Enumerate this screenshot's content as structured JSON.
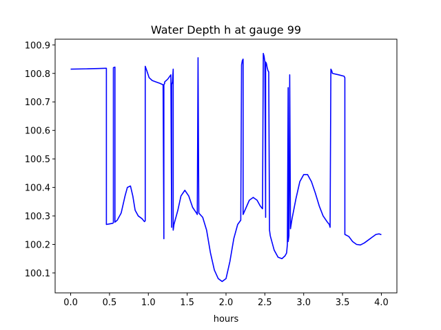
{
  "chart_data": {
    "type": "line",
    "title": "Water Depth h at gauge 99",
    "xlabel": "hours",
    "ylabel": "",
    "xlim": [
      -0.2,
      4.2
    ],
    "ylim": [
      100.03,
      100.92
    ],
    "xticks": [
      0.0,
      0.5,
      1.0,
      1.5,
      2.0,
      2.5,
      3.0,
      3.5,
      4.0
    ],
    "xtick_labels": [
      "0.0",
      "0.5",
      "1.0",
      "1.5",
      "2.0",
      "2.5",
      "3.0",
      "3.5",
      "4.0"
    ],
    "yticks": [
      100.1,
      100.2,
      100.3,
      100.4,
      100.5,
      100.6,
      100.7,
      100.8,
      100.9
    ],
    "ytick_labels": [
      "100.1",
      "100.2",
      "100.3",
      "100.4",
      "100.5",
      "100.6",
      "100.7",
      "100.8",
      "100.9"
    ],
    "grid": false,
    "series": [
      {
        "name": "h",
        "color": "#0000ff",
        "x": [
          0.0,
          0.2,
          0.35,
          0.45,
          0.46,
          0.46,
          0.5,
          0.54,
          0.55,
          0.55,
          0.56,
          0.57,
          0.57,
          0.6,
          0.65,
          0.7,
          0.73,
          0.77,
          0.8,
          0.83,
          0.87,
          0.92,
          0.95,
          0.96,
          0.96,
          0.98,
          1.01,
          1.05,
          1.1,
          1.15,
          1.19,
          1.2,
          1.2,
          1.21,
          1.21,
          1.25,
          1.29,
          1.3,
          1.3,
          1.31,
          1.32,
          1.32,
          1.33,
          1.38,
          1.42,
          1.47,
          1.52,
          1.57,
          1.62,
          1.63,
          1.64,
          1.64,
          1.65,
          1.7,
          1.75,
          1.8,
          1.85,
          1.9,
          1.95,
          2.0,
          2.05,
          2.1,
          2.15,
          2.19,
          2.2,
          2.21,
          2.22,
          2.22,
          2.26,
          2.3,
          2.35,
          2.4,
          2.44,
          2.47,
          2.48,
          2.49,
          2.5,
          2.51,
          2.51,
          2.52,
          2.53,
          2.54,
          2.55,
          2.56,
          2.57,
          2.62,
          2.67,
          2.72,
          2.76,
          2.78,
          2.79,
          2.8,
          2.8,
          2.81,
          2.82,
          2.82,
          2.83,
          2.85,
          2.9,
          2.95,
          3.0,
          3.05,
          3.1,
          3.15,
          3.2,
          3.25,
          3.3,
          3.33,
          3.34,
          3.35,
          3.36,
          3.37,
          3.45,
          3.52,
          3.53,
          3.53,
          3.58,
          3.63,
          3.68,
          3.73,
          3.78,
          3.83,
          3.88,
          3.93,
          3.97,
          4.0
        ],
        "values": [
          100.815,
          100.816,
          100.817,
          100.818,
          100.818,
          100.27,
          100.272,
          100.274,
          100.276,
          100.82,
          100.821,
          100.822,
          100.278,
          100.285,
          100.31,
          100.37,
          100.4,
          100.405,
          100.37,
          100.32,
          100.3,
          100.29,
          100.28,
          100.283,
          100.825,
          100.81,
          100.785,
          100.775,
          100.77,
          100.765,
          100.76,
          100.22,
          100.76,
          100.765,
          100.77,
          100.78,
          100.795,
          100.26,
          100.76,
          100.77,
          100.815,
          100.25,
          100.27,
          100.32,
          100.37,
          100.39,
          100.37,
          100.33,
          100.31,
          100.305,
          100.855,
          100.85,
          100.31,
          100.295,
          100.25,
          100.17,
          100.11,
          100.08,
          100.07,
          100.08,
          100.14,
          100.22,
          100.27,
          100.285,
          100.83,
          100.845,
          100.85,
          100.305,
          100.33,
          100.355,
          100.365,
          100.355,
          100.335,
          100.325,
          100.87,
          100.86,
          100.84,
          100.295,
          100.84,
          100.835,
          100.82,
          100.81,
          100.805,
          100.25,
          100.23,
          100.18,
          100.155,
          100.15,
          100.16,
          100.17,
          100.2,
          100.75,
          100.21,
          100.23,
          100.79,
          100.795,
          100.255,
          100.29,
          100.36,
          100.42,
          100.445,
          100.445,
          100.42,
          100.38,
          100.335,
          100.3,
          100.28,
          100.27,
          100.26,
          100.815,
          100.81,
          100.8,
          100.795,
          100.79,
          100.785,
          100.235,
          100.228,
          100.21,
          100.2,
          100.198,
          100.205,
          100.215,
          100.225,
          100.235,
          100.237,
          100.234
        ]
      }
    ]
  }
}
